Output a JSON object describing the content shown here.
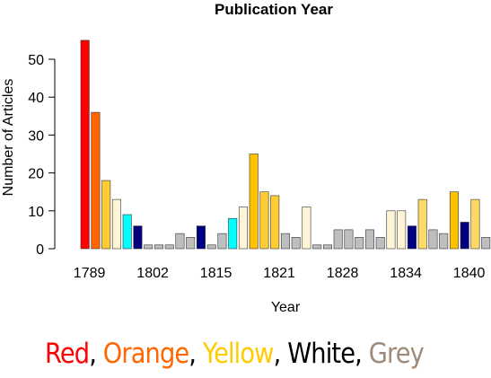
{
  "chart_data": {
    "type": "bar",
    "title": "Publication Year",
    "xlabel": "Year",
    "ylabel": "Number of Articles",
    "ylim": [
      0,
      55
    ],
    "yticks": [
      0,
      10,
      20,
      30,
      40,
      50
    ],
    "xtick_labels": [
      {
        "bar": 1,
        "label": "1789"
      },
      {
        "bar": 7,
        "label": "1802"
      },
      {
        "bar": 13,
        "label": "1815"
      },
      {
        "bar": 19,
        "label": "1821"
      },
      {
        "bar": 25,
        "label": "1828"
      },
      {
        "bar": 31,
        "label": "1834"
      },
      {
        "bar": 37,
        "label": "1840"
      }
    ],
    "bars": [
      {
        "value": 55,
        "color": "#ff0000"
      },
      {
        "value": 36,
        "color": "#ff6600"
      },
      {
        "value": 18,
        "color": "#ffcc33"
      },
      {
        "value": 13,
        "color": "#fff5d6"
      },
      {
        "value": 9,
        "color": "#00ffff"
      },
      {
        "value": 6,
        "color": "#000080"
      },
      {
        "value": 1,
        "color": "#bebebe"
      },
      {
        "value": 1,
        "color": "#bebebe"
      },
      {
        "value": 1,
        "color": "#bebebe"
      },
      {
        "value": 4,
        "color": "#bebebe"
      },
      {
        "value": 3,
        "color": "#bebebe"
      },
      {
        "value": 6,
        "color": "#000080"
      },
      {
        "value": 1,
        "color": "#bebebe"
      },
      {
        "value": 4,
        "color": "#bebebe"
      },
      {
        "value": 8,
        "color": "#00ffff"
      },
      {
        "value": 11,
        "color": "#fff5d6"
      },
      {
        "value": 25,
        "color": "#ffc000"
      },
      {
        "value": 15,
        "color": "#ffcc33"
      },
      {
        "value": 14,
        "color": "#ffcc33"
      },
      {
        "value": 4,
        "color": "#bebebe"
      },
      {
        "value": 3,
        "color": "#bebebe"
      },
      {
        "value": 11,
        "color": "#fff5d6"
      },
      {
        "value": 1,
        "color": "#bebebe"
      },
      {
        "value": 1,
        "color": "#bebebe"
      },
      {
        "value": 5,
        "color": "#bebebe"
      },
      {
        "value": 5,
        "color": "#bebebe"
      },
      {
        "value": 3,
        "color": "#bebebe"
      },
      {
        "value": 5,
        "color": "#bebebe"
      },
      {
        "value": 3,
        "color": "#bebebe"
      },
      {
        "value": 10,
        "color": "#fff5d6"
      },
      {
        "value": 10,
        "color": "#fff5d6"
      },
      {
        "value": 6,
        "color": "#000080"
      },
      {
        "value": 13,
        "color": "#ffd966"
      },
      {
        "value": 5,
        "color": "#bebebe"
      },
      {
        "value": 4,
        "color": "#bebebe"
      },
      {
        "value": 15,
        "color": "#ffc000"
      },
      {
        "value": 7,
        "color": "#000080"
      },
      {
        "value": 13,
        "color": "#ffd966"
      },
      {
        "value": 3,
        "color": "#bebebe"
      }
    ]
  },
  "legend_caption": [
    {
      "text": "Red",
      "color": "#ff0000"
    },
    {
      "text": ", ",
      "color": "#000000"
    },
    {
      "text": "Orange",
      "color": "#ff6600"
    },
    {
      "text": ", ",
      "color": "#000000"
    },
    {
      "text": "Yellow",
      "color": "#ffcc00"
    },
    {
      "text": ", ",
      "color": "#000000"
    },
    {
      "text": "White",
      "color": "#000000"
    },
    {
      "text": ", ",
      "color": "#000000"
    },
    {
      "text": "Grey",
      "color": "#a08b7a"
    }
  ]
}
